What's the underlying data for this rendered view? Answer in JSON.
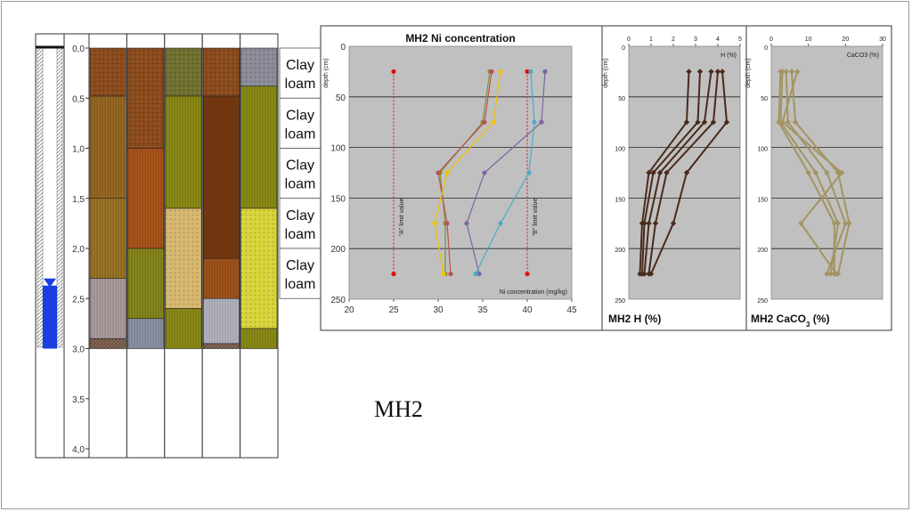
{
  "site_label": "MH2",
  "colors": {
    "panel_bg": "#c0c0c0",
    "water": "#1a3fe0",
    "limit_points": "#e01010"
  },
  "profile": {
    "depth_ticks": [
      "0,0",
      "0,5",
      "1,0",
      "1,5",
      "2,0",
      "2,5",
      "3,0",
      "3,5",
      "4,0"
    ],
    "depth_max_m": 4.0,
    "drilled_depth_m": 3.0,
    "water_level_m": 2.3,
    "soil_labels": [
      "Clay loam",
      "Clay loam",
      "Clay loam",
      "Clay loam",
      "Clay loam"
    ],
    "columns": [
      {
        "layers": [
          {
            "from": 0,
            "to": 0.48,
            "color": "#8a4a1c",
            "pattern": "dots"
          },
          {
            "from": 0.48,
            "to": 1.5,
            "color": "#9a6a22",
            "pattern": "vlines"
          },
          {
            "from": 1.5,
            "to": 2.3,
            "color": "#9e7626",
            "pattern": "vlines"
          },
          {
            "from": 2.3,
            "to": 2.9,
            "color": "#b0a0a0",
            "pattern": "vlines"
          },
          {
            "from": 2.9,
            "to": 3.0,
            "color": "#8a6a56",
            "pattern": "hatch"
          }
        ]
      },
      {
        "layers": [
          {
            "from": 0,
            "to": 1.0,
            "color": "#8a4a1c",
            "pattern": "dots"
          },
          {
            "from": 1.0,
            "to": 2.0,
            "color": "#b0561a",
            "pattern": "vlines"
          },
          {
            "from": 2.0,
            "to": 2.7,
            "color": "#8a8a1c",
            "pattern": "vlines"
          },
          {
            "from": 2.7,
            "to": 3.0,
            "color": "#8e96a6",
            "pattern": "vlines"
          }
        ]
      },
      {
        "layers": [
          {
            "from": 0,
            "to": 0.48,
            "color": "#6e7030",
            "pattern": "dots"
          },
          {
            "from": 0.48,
            "to": 1.6,
            "color": "#8e8e16",
            "pattern": "vlines"
          },
          {
            "from": 1.6,
            "to": 2.6,
            "color": "#d6b66e",
            "pattern": "dots"
          },
          {
            "from": 2.6,
            "to": 3.0,
            "color": "#8e8e16",
            "pattern": "vlines"
          }
        ]
      },
      {
        "layers": [
          {
            "from": 0,
            "to": 0.48,
            "color": "#8a4a1c",
            "pattern": "dots"
          },
          {
            "from": 0.48,
            "to": 2.1,
            "color": "#7a3a10",
            "pattern": "vlines"
          },
          {
            "from": 2.1,
            "to": 2.5,
            "color": "#a4561a",
            "pattern": "vlines"
          },
          {
            "from": 2.5,
            "to": 2.95,
            "color": "#b8b8c4",
            "pattern": "vlines"
          },
          {
            "from": 2.95,
            "to": 3.0,
            "color": "#8a6a56",
            "pattern": "hatch"
          }
        ]
      },
      {
        "layers": [
          {
            "from": 0,
            "to": 0.38,
            "color": "#8a8a98",
            "pattern": "dots"
          },
          {
            "from": 0.38,
            "to": 1.6,
            "color": "#8e8e16",
            "pattern": "vlines"
          },
          {
            "from": 1.6,
            "to": 2.8,
            "color": "#d8d23a",
            "pattern": "dots"
          },
          {
            "from": 2.8,
            "to": 3.0,
            "color": "#8e8e16",
            "pattern": "vlines"
          }
        ]
      }
    ]
  },
  "chart_data": [
    {
      "type": "line",
      "title": "MH2 Ni concentration",
      "xlabel": "Ni concentration (mg/kg)",
      "ylabel": "depth (cm)",
      "xlim": [
        20,
        45
      ],
      "ylim": [
        250,
        0
      ],
      "xticks": [
        20,
        25,
        30,
        35,
        40,
        45
      ],
      "yticks": [
        0,
        50,
        100,
        150,
        200,
        250
      ],
      "grid": "horizontal",
      "depths": [
        25,
        75,
        125,
        175,
        225
      ],
      "series": [
        {
          "color": "#77933c",
          "values": [
            35.8,
            35.0,
            30.2,
            30.8,
            30.8
          ]
        },
        {
          "color": "#c0504d",
          "values": [
            36.0,
            35.2,
            30.0,
            31.0,
            31.4
          ]
        },
        {
          "color": "#f4c000",
          "values": [
            37.0,
            36.2,
            31.0,
            29.6,
            30.6
          ]
        },
        {
          "color": "#8064a2",
          "values": [
            42.0,
            41.6,
            35.2,
            33.2,
            34.6
          ]
        },
        {
          "color": "#4bacc6",
          "values": [
            40.4,
            40.8,
            40.2,
            37.0,
            34.2
          ]
        }
      ],
      "limit_lines": [
        {
          "label": "\"A\" limit value",
          "x": 25
        },
        {
          "label": "\"B\" limit value",
          "x": 40
        }
      ]
    },
    {
      "type": "line",
      "title": "MH2 H (%)",
      "xlabel": "H (%)",
      "ylabel": "depth (cm)",
      "xlim": [
        0,
        5
      ],
      "ylim": [
        250,
        0
      ],
      "xticks": [
        0,
        1,
        2,
        3,
        4,
        5
      ],
      "yticks": [
        0,
        50,
        100,
        150,
        200,
        250
      ],
      "grid": "horizontal",
      "depths": [
        25,
        75,
        125,
        175,
        225
      ],
      "series": [
        {
          "color": "#4a2a1c",
          "values": [
            2.7,
            2.6,
            0.9,
            0.6,
            0.5
          ]
        },
        {
          "color": "#4a2a1c",
          "values": [
            3.2,
            3.1,
            1.1,
            0.7,
            0.6
          ]
        },
        {
          "color": "#4a2a1c",
          "values": [
            3.7,
            3.4,
            1.4,
            0.9,
            0.7
          ]
        },
        {
          "color": "#4a2a1c",
          "values": [
            4.0,
            3.8,
            1.7,
            1.2,
            0.9
          ]
        },
        {
          "color": "#4a2a1c",
          "values": [
            4.2,
            4.4,
            2.6,
            2.0,
            1.0
          ]
        }
      ]
    },
    {
      "type": "line",
      "title": "MH2 CaCO3 (%)",
      "xlabel": "CaCO3 (%)",
      "ylabel": "depth (cm)",
      "xlim": [
        0,
        30
      ],
      "ylim": [
        250,
        0
      ],
      "xticks": [
        0,
        10,
        20,
        30
      ],
      "yticks": [
        0,
        50,
        100,
        150,
        200,
        250
      ],
      "grid": "horizontal",
      "depths": [
        25,
        75,
        125,
        175,
        225
      ],
      "series": [
        {
          "color": "#a39462",
          "values": [
            2.5,
            2.0,
            10.0,
            17.0,
            17.0
          ]
        },
        {
          "color": "#a39462",
          "values": [
            3.0,
            2.5,
            12.0,
            18.0,
            16.0
          ]
        },
        {
          "color": "#a39462",
          "values": [
            4.0,
            4.5,
            15.0,
            20.0,
            15.0
          ]
        },
        {
          "color": "#a39462",
          "values": [
            5.5,
            6.5,
            18.0,
            21.0,
            18.0
          ]
        },
        {
          "color": "#a39462",
          "values": [
            7.0,
            3.0,
            19.0,
            8.0,
            17.5
          ]
        }
      ]
    }
  ]
}
